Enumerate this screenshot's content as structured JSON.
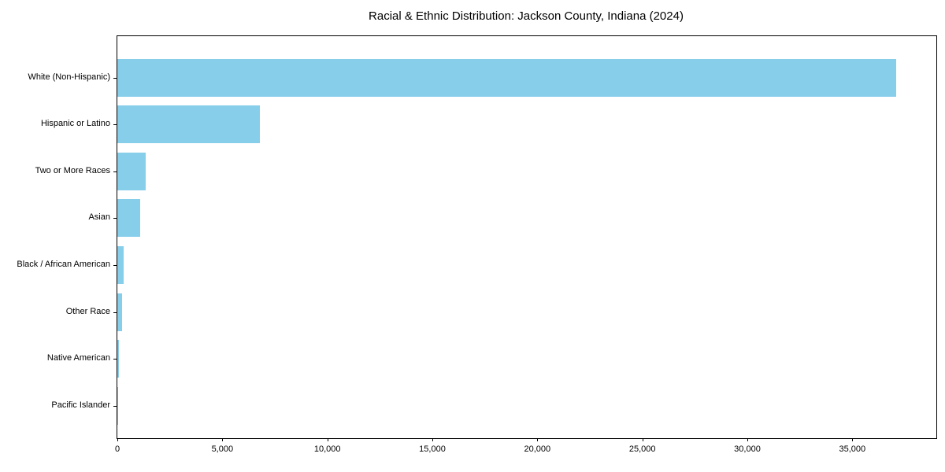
{
  "chart_data": {
    "type": "bar",
    "orientation": "horizontal",
    "title": "Racial & Ethnic Distribution: Jackson County, Indiana (2024)",
    "categories": [
      "White (Non-Hispanic)",
      "Hispanic or Latino",
      "Two or More Races",
      "Asian",
      "Black / African American",
      "Other Race",
      "Native American",
      "Pacific Islander"
    ],
    "values": [
      37100,
      6770,
      1360,
      1080,
      290,
      240,
      60,
      25
    ],
    "xlabel": "",
    "ylabel": "",
    "xlim": [
      0,
      39000
    ],
    "x_tick_values": [
      0,
      5000,
      10000,
      15000,
      20000,
      25000,
      30000,
      35000
    ],
    "x_tick_labels": [
      "0",
      "5,000",
      "10,000",
      "15,000",
      "20,000",
      "25,000",
      "30,000",
      "35,000"
    ],
    "grid": false,
    "legend": "none",
    "bar_color": "#87CEEB",
    "frame_color": "#000000",
    "text_color": "#000000"
  }
}
